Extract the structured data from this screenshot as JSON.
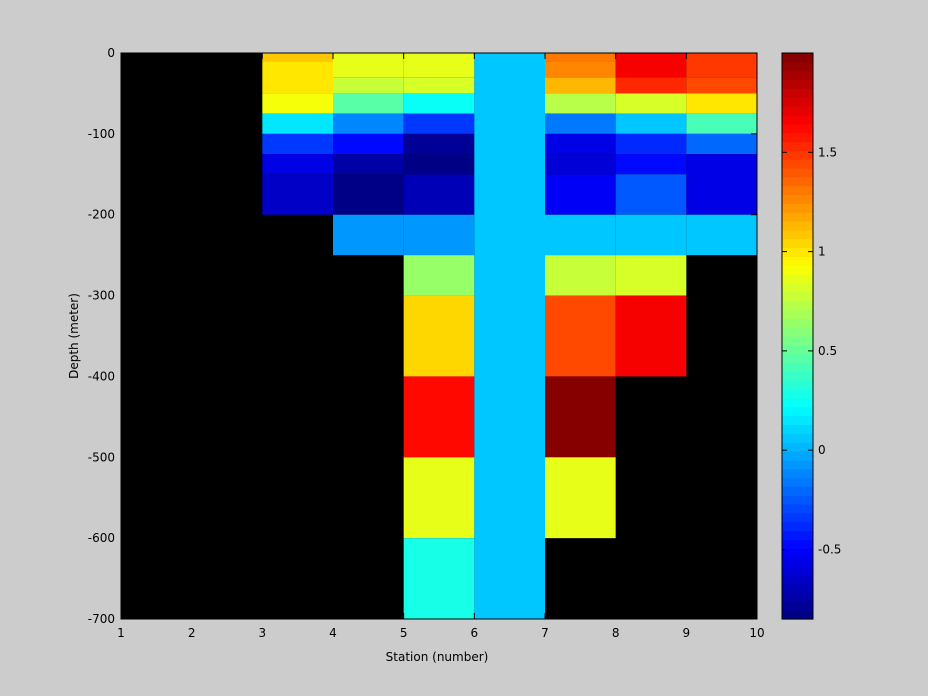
{
  "chart_data": {
    "type": "heatmap",
    "title": "",
    "xlabel": "Station (number)",
    "ylabel": "Depth (meter)",
    "xlim": [
      1,
      10
    ],
    "ylim": [
      -700,
      0
    ],
    "xticks": [
      1,
      2,
      3,
      4,
      5,
      6,
      7,
      8,
      9,
      10
    ],
    "yticks": [
      0,
      -100,
      -200,
      -300,
      -400,
      -500,
      -600,
      -700
    ],
    "nan_color": "#000000",
    "colormap": "jet",
    "clim": [
      -0.85,
      2.0
    ],
    "colorbar": {
      "ticks": [
        -0.5,
        0,
        0.5,
        1,
        1.5
      ],
      "levels": 64,
      "position": "right"
    },
    "cells": [
      {
        "x": [
          3,
          4
        ],
        "y": [
          0,
          -10
        ],
        "v": 1.1
      },
      {
        "x": [
          3,
          4
        ],
        "y": [
          -10,
          -50
        ],
        "v": 1.0
      },
      {
        "x": [
          3,
          4
        ],
        "y": [
          -50,
          -75
        ],
        "v": 0.9
      },
      {
        "x": [
          3,
          4
        ],
        "y": [
          -75,
          -100
        ],
        "v": 0.15
      },
      {
        "x": [
          3,
          4
        ],
        "y": [
          -100,
          -125
        ],
        "v": -0.35
      },
      {
        "x": [
          3,
          4
        ],
        "y": [
          -125,
          -150
        ],
        "v": -0.55
      },
      {
        "x": [
          3,
          4
        ],
        "y": [
          -150,
          -200
        ],
        "v": -0.65
      },
      {
        "x": [
          4,
          5
        ],
        "y": [
          0,
          -30
        ],
        "v": 0.88
      },
      {
        "x": [
          4,
          5
        ],
        "y": [
          -30,
          -50
        ],
        "v": 0.78
      },
      {
        "x": [
          4,
          5
        ],
        "y": [
          -50,
          -75
        ],
        "v": 0.45
      },
      {
        "x": [
          4,
          5
        ],
        "y": [
          -75,
          -100
        ],
        "v": -0.1
      },
      {
        "x": [
          4,
          5
        ],
        "y": [
          -100,
          -125
        ],
        "v": -0.45
      },
      {
        "x": [
          4,
          5
        ],
        "y": [
          -125,
          -150
        ],
        "v": -0.75
      },
      {
        "x": [
          4,
          5
        ],
        "y": [
          -150,
          -200
        ],
        "v": -0.85
      },
      {
        "x": [
          4,
          5
        ],
        "y": [
          -200,
          -250
        ],
        "v": -0.05
      },
      {
        "x": [
          5,
          6
        ],
        "y": [
          0,
          -30
        ],
        "v": 0.88
      },
      {
        "x": [
          5,
          6
        ],
        "y": [
          -30,
          -50
        ],
        "v": 0.8
      },
      {
        "x": [
          5,
          6
        ],
        "y": [
          -50,
          -75
        ],
        "v": 0.25
      },
      {
        "x": [
          5,
          6
        ],
        "y": [
          -75,
          -100
        ],
        "v": -0.35
      },
      {
        "x": [
          5,
          6
        ],
        "y": [
          -100,
          -125
        ],
        "v": -0.8
      },
      {
        "x": [
          5,
          6
        ],
        "y": [
          -125,
          -150
        ],
        "v": -0.85
      },
      {
        "x": [
          5,
          6
        ],
        "y": [
          -150,
          -200
        ],
        "v": -0.7
      },
      {
        "x": [
          5,
          6
        ],
        "y": [
          -200,
          -250
        ],
        "v": -0.05
      },
      {
        "x": [
          5,
          6
        ],
        "y": [
          -250,
          -300
        ],
        "v": 0.62
      },
      {
        "x": [
          5,
          6
        ],
        "y": [
          -300,
          -400
        ],
        "v": 1.05
      },
      {
        "x": [
          5,
          6
        ],
        "y": [
          -400,
          -500
        ],
        "v": 1.6
      },
      {
        "x": [
          5,
          6
        ],
        "y": [
          -500,
          -600
        ],
        "v": 0.88
      },
      {
        "x": [
          5,
          6
        ],
        "y": [
          -600,
          -700
        ],
        "v": 0.3
      },
      {
        "x": [
          6,
          7
        ],
        "y": [
          0,
          -700
        ],
        "v": 0.05
      },
      {
        "x": [
          7,
          8
        ],
        "y": [
          0,
          -10
        ],
        "v": 1.3
      },
      {
        "x": [
          7,
          8
        ],
        "y": [
          -10,
          -30
        ],
        "v": 1.25
      },
      {
        "x": [
          7,
          8
        ],
        "y": [
          -30,
          -50
        ],
        "v": 1.15
      },
      {
        "x": [
          7,
          8
        ],
        "y": [
          -50,
          -75
        ],
        "v": 0.72
      },
      {
        "x": [
          7,
          8
        ],
        "y": [
          -75,
          -100
        ],
        "v": -0.15
      },
      {
        "x": [
          7,
          8
        ],
        "y": [
          -100,
          -125
        ],
        "v": -0.55
      },
      {
        "x": [
          7,
          8
        ],
        "y": [
          -125,
          -150
        ],
        "v": -0.6
      },
      {
        "x": [
          7,
          8
        ],
        "y": [
          -150,
          -200
        ],
        "v": -0.5
      },
      {
        "x": [
          7,
          8
        ],
        "y": [
          -200,
          -250
        ],
        "v": 0.05
      },
      {
        "x": [
          7,
          8
        ],
        "y": [
          -250,
          -300
        ],
        "v": 0.78
      },
      {
        "x": [
          7,
          8
        ],
        "y": [
          -300,
          -400
        ],
        "v": 1.45
      },
      {
        "x": [
          7,
          8
        ],
        "y": [
          -400,
          -500
        ],
        "v": 2.0
      },
      {
        "x": [
          7,
          8
        ],
        "y": [
          -500,
          -600
        ],
        "v": 0.85
      },
      {
        "x": [
          8,
          9
        ],
        "y": [
          0,
          -30
        ],
        "v": 1.65
      },
      {
        "x": [
          8,
          9
        ],
        "y": [
          -30,
          -50
        ],
        "v": 1.55
      },
      {
        "x": [
          8,
          9
        ],
        "y": [
          -50,
          -75
        ],
        "v": 0.82
      },
      {
        "x": [
          8,
          9
        ],
        "y": [
          -75,
          -100
        ],
        "v": 0.05
      },
      {
        "x": [
          8,
          9
        ],
        "y": [
          -100,
          -125
        ],
        "v": -0.4
      },
      {
        "x": [
          8,
          9
        ],
        "y": [
          -125,
          -150
        ],
        "v": -0.45
      },
      {
        "x": [
          8,
          9
        ],
        "y": [
          -150,
          -200
        ],
        "v": -0.25
      },
      {
        "x": [
          8,
          9
        ],
        "y": [
          -200,
          -250
        ],
        "v": 0.05
      },
      {
        "x": [
          8,
          9
        ],
        "y": [
          -250,
          -300
        ],
        "v": 0.82
      },
      {
        "x": [
          8,
          9
        ],
        "y": [
          -300,
          -400
        ],
        "v": 1.65
      },
      {
        "x": [
          9,
          10
        ],
        "y": [
          0,
          -30
        ],
        "v": 1.5
      },
      {
        "x": [
          9,
          10
        ],
        "y": [
          -30,
          -50
        ],
        "v": 1.45
      },
      {
        "x": [
          9,
          10
        ],
        "y": [
          -50,
          -75
        ],
        "v": 1.0
      },
      {
        "x": [
          9,
          10
        ],
        "y": [
          -75,
          -100
        ],
        "v": 0.4
      },
      {
        "x": [
          9,
          10
        ],
        "y": [
          -100,
          -125
        ],
        "v": -0.2
      },
      {
        "x": [
          9,
          10
        ],
        "y": [
          -125,
          -200
        ],
        "v": -0.55
      },
      {
        "x": [
          9,
          10
        ],
        "y": [
          -200,
          -250
        ],
        "v": 0.05
      }
    ]
  }
}
